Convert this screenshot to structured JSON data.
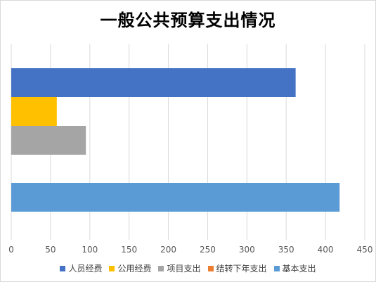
{
  "chart_data": {
    "type": "bar",
    "orientation": "horizontal",
    "title": "一般公共预算支出情况",
    "xlabel": "",
    "ylabel": "",
    "xlim": [
      0,
      450
    ],
    "xticks": [
      0,
      50,
      100,
      150,
      200,
      250,
      300,
      350,
      400,
      450
    ],
    "grid": true,
    "legend_position": "bottom",
    "groups": [
      {
        "bars": [
          {
            "series": "人员经费",
            "value": 362
          },
          {
            "series": "公用经费",
            "value": 58
          },
          {
            "series": "项目支出",
            "value": 95
          }
        ]
      },
      {
        "bars": [
          {
            "series": "基本支出",
            "value": 418
          }
        ]
      }
    ],
    "series": [
      {
        "name": "人员经费",
        "color": "#4472c4"
      },
      {
        "name": "公用经费",
        "color": "#ffc000"
      },
      {
        "name": "项目支出",
        "color": "#a5a5a5"
      },
      {
        "name": "结转下年支出",
        "color": "#ed7d31"
      },
      {
        "name": "基本支出",
        "color": "#5b9bd5"
      }
    ]
  }
}
